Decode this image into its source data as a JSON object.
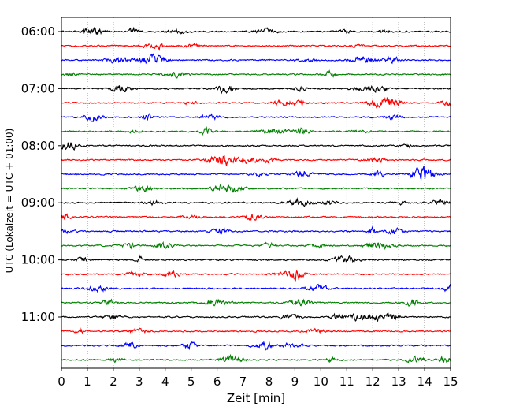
{
  "chart_data": {
    "type": "line",
    "title": "",
    "xlabel": "Zeit  [min]",
    "ylabel": "UTC (Lokalzeit = UTC + 01:00)",
    "xlim": [
      0,
      15
    ],
    "xticks": [
      0,
      1,
      2,
      3,
      4,
      5,
      6,
      7,
      8,
      9,
      10,
      11,
      12,
      13,
      14,
      15
    ],
    "xtick_labels": [
      "0",
      "1",
      "2",
      "3",
      "4",
      "5",
      "6",
      "7",
      "8",
      "9",
      "10",
      "11",
      "12",
      "13",
      "14",
      "15"
    ],
    "yticks": [
      "06:00",
      "07:00",
      "08:00",
      "09:00",
      "10:00",
      "11:00"
    ],
    "grid": "vertical dotted at each minute",
    "trace_interval_min": 15,
    "traces": [
      {
        "start": "06:00",
        "color": "#000000"
      },
      {
        "start": "06:15",
        "color": "#ff0000"
      },
      {
        "start": "06:30",
        "color": "#0000ff"
      },
      {
        "start": "06:45",
        "color": "#007f00"
      },
      {
        "start": "07:00",
        "color": "#000000"
      },
      {
        "start": "07:15",
        "color": "#ff0000"
      },
      {
        "start": "07:30",
        "color": "#0000ff"
      },
      {
        "start": "07:45",
        "color": "#007f00"
      },
      {
        "start": "08:00",
        "color": "#000000"
      },
      {
        "start": "08:15",
        "color": "#ff0000"
      },
      {
        "start": "08:30",
        "color": "#0000ff"
      },
      {
        "start": "08:45",
        "color": "#007f00"
      },
      {
        "start": "09:00",
        "color": "#000000"
      },
      {
        "start": "09:15",
        "color": "#ff0000"
      },
      {
        "start": "09:30",
        "color": "#0000ff"
      },
      {
        "start": "09:45",
        "color": "#007f00"
      },
      {
        "start": "10:00",
        "color": "#000000"
      },
      {
        "start": "10:15",
        "color": "#ff0000"
      },
      {
        "start": "10:30",
        "color": "#0000ff"
      },
      {
        "start": "10:45",
        "color": "#007f00"
      },
      {
        "start": "11:00",
        "color": "#000000"
      },
      {
        "start": "11:15",
        "color": "#ff0000"
      },
      {
        "start": "11:30",
        "color": "#0000ff"
      },
      {
        "start": "11:45",
        "color": "#007f00"
      }
    ]
  }
}
